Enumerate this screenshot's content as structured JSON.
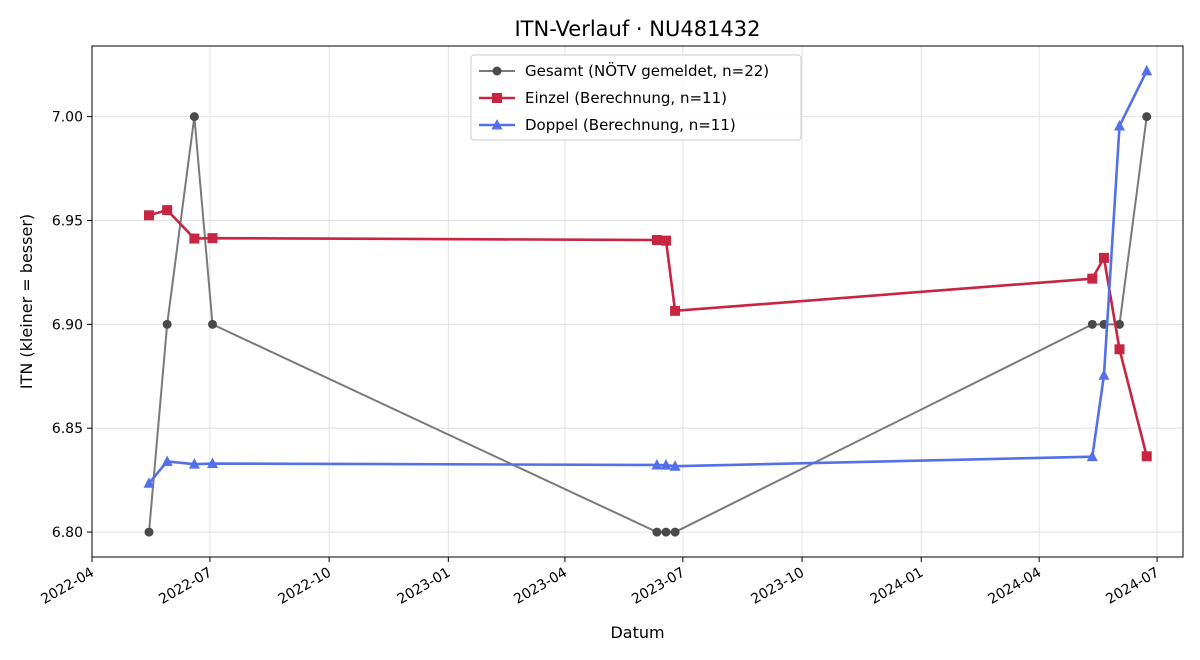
{
  "chart_data": {
    "type": "line",
    "title": "ITN-Verlauf · NU481432",
    "xlabel": "Datum",
    "ylabel": "ITN  (kleiner = besser)",
    "x_axis_type": "date",
    "xlim": [
      "2022-04-01",
      "2024-07-21"
    ],
    "ylim": [
      6.788,
      7.034
    ],
    "x_ticks": [
      "2022-04",
      "2022-07",
      "2022-10",
      "2023-01",
      "2023-04",
      "2023-07",
      "2023-10",
      "2024-01",
      "2024-04",
      "2024-07"
    ],
    "y_ticks": [
      "6.80",
      "6.85",
      "6.90",
      "6.95",
      "7.00"
    ],
    "grid": true,
    "legend_position": "top-center",
    "series": [
      {
        "name": "Gesamt (NÖTV gemeldet, n=22)",
        "color": "#7a7a7a",
        "marker_color": "#4a4a4a",
        "marker": "circle",
        "points": [
          {
            "x": "2022-05-15",
            "y": 6.8
          },
          {
            "x": "2022-05-29",
            "y": 6.9
          },
          {
            "x": "2022-06-19",
            "y": 7.0
          },
          {
            "x": "2022-07-03",
            "y": 6.9
          },
          {
            "x": "2023-06-11",
            "y": 6.8
          },
          {
            "x": "2023-06-18",
            "y": 6.8
          },
          {
            "x": "2023-06-25",
            "y": 6.8
          },
          {
            "x": "2024-05-12",
            "y": 6.9
          },
          {
            "x": "2024-05-21",
            "y": 6.9
          },
          {
            "x": "2024-06-02",
            "y": 6.9
          },
          {
            "x": "2024-06-23",
            "y": 7.0
          }
        ]
      },
      {
        "name": "Einzel (Berechnung, n=11)",
        "color": "#c72541",
        "marker_color": "#c72541",
        "marker": "square",
        "points": [
          {
            "x": "2022-05-15",
            "y": 6.9525
          },
          {
            "x": "2022-05-29",
            "y": 6.955
          },
          {
            "x": "2022-06-19",
            "y": 6.9413
          },
          {
            "x": "2022-07-03",
            "y": 6.9415
          },
          {
            "x": "2023-06-11",
            "y": 6.9406
          },
          {
            "x": "2023-06-18",
            "y": 6.9403
          },
          {
            "x": "2023-06-25",
            "y": 6.9065
          },
          {
            "x": "2024-05-12",
            "y": 6.922
          },
          {
            "x": "2024-05-21",
            "y": 6.932
          },
          {
            "x": "2024-06-02",
            "y": 6.888
          },
          {
            "x": "2024-06-23",
            "y": 6.8365
          }
        ]
      },
      {
        "name": "Doppel (Berechnung, n=11)",
        "color": "#5470e8",
        "marker_color": "#5470e8",
        "marker": "triangle",
        "points": [
          {
            "x": "2022-05-15",
            "y": 6.8235
          },
          {
            "x": "2022-05-29",
            "y": 6.834
          },
          {
            "x": "2022-06-19",
            "y": 6.8327
          },
          {
            "x": "2022-07-03",
            "y": 6.833
          },
          {
            "x": "2023-06-11",
            "y": 6.8323
          },
          {
            "x": "2023-06-18",
            "y": 6.8322
          },
          {
            "x": "2023-06-25",
            "y": 6.8317
          },
          {
            "x": "2024-05-12",
            "y": 6.8363
          },
          {
            "x": "2024-05-21",
            "y": 6.8755
          },
          {
            "x": "2024-06-02",
            "y": 6.9955
          },
          {
            "x": "2024-06-23",
            "y": 7.022
          }
        ]
      }
    ]
  }
}
